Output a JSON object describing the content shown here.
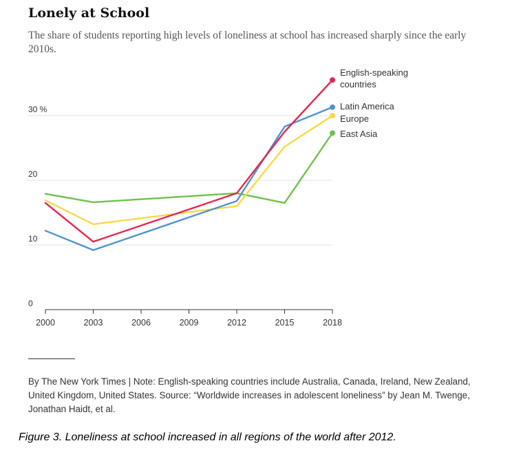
{
  "header": {
    "title": "Lonely at School",
    "subtitle": "The share of students reporting high levels of loneliness at school has increased sharply since the early 2010s."
  },
  "chart_data": {
    "type": "line",
    "title": "Lonely at School",
    "x": [
      2000,
      2003,
      2012,
      2015,
      2018
    ],
    "xticks": [
      "2000",
      "2003",
      "2006",
      "2009",
      "2012",
      "2015",
      "2018"
    ],
    "yticks": [
      "0",
      "10",
      "20",
      "30 %"
    ],
    "ylim": [
      0,
      38
    ],
    "xlim": [
      2000,
      2018
    ],
    "grid": "horizontal",
    "legend": "right-end labels",
    "series": [
      {
        "name": "English-speaking countries",
        "color": "#e8254d",
        "values": [
          16.5,
          10.5,
          18.0,
          27.5,
          35.5
        ]
      },
      {
        "name": "Latin America",
        "color": "#4f93cf",
        "values": [
          12.2,
          9.2,
          16.8,
          28.3,
          31.3
        ]
      },
      {
        "name": "Europe",
        "color": "#fad943",
        "values": [
          16.9,
          13.2,
          16.0,
          25.2,
          30.0
        ]
      },
      {
        "name": "East Asia",
        "color": "#6cc24a",
        "values": [
          17.9,
          16.6,
          18.0,
          16.5,
          27.3
        ]
      }
    ],
    "series_label_lines": [
      [
        "English-speaking",
        "countries"
      ],
      [
        "Latin America"
      ],
      [
        "Europe"
      ],
      [
        "East Asia"
      ]
    ]
  },
  "footer": {
    "source": "By The New York Times | Note: English-speaking countries include Australia, Canada, Ireland, New Zealand, United Kingdom, United States. Source: “Worldwide increases in adolescent loneliness” by Jean M. Twenge, Jonathan Haidt, et al.",
    "caption": "Figure 3. Loneliness at school increased in all regions of the world after 2012."
  }
}
